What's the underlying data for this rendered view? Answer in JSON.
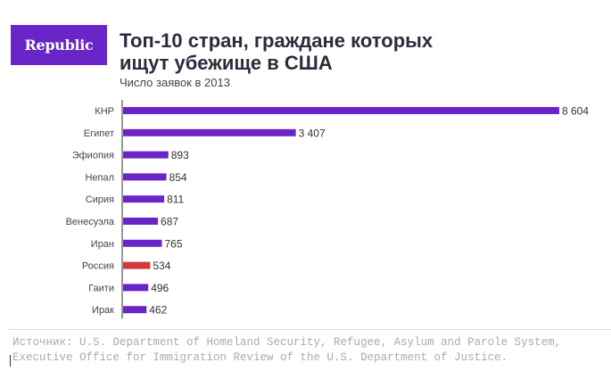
{
  "logo": "Republic",
  "chart_data": {
    "type": "bar",
    "orientation": "horizontal",
    "title": "Топ-10 стран, граждане которых ищут убежище в США",
    "subtitle": "Число заявок в 2013",
    "categories": [
      "КНР",
      "Египет",
      "Эфиопия",
      "Непал",
      "Сирия",
      "Венесуэла",
      "Иран",
      "Россия",
      "Гаити",
      "Ирак"
    ],
    "values": [
      8604,
      3407,
      893,
      854,
      811,
      687,
      765,
      534,
      496,
      462
    ],
    "value_labels": [
      "8 604",
      "3 407",
      "893",
      "854",
      "811",
      "687",
      "765",
      "534",
      "496",
      "462"
    ],
    "highlight": "Россия",
    "colors": {
      "default": "#6a25c9",
      "highlight": "#d03a3a"
    },
    "xlim": [
      0,
      8604
    ]
  },
  "footer": {
    "source_line1": "Источник: U.S. Department of Homeland Security, Refugee, Asylum and Parole System,",
    "source_line2": "Executive Office for Immigration Review of the U.S. Department of Justice."
  }
}
